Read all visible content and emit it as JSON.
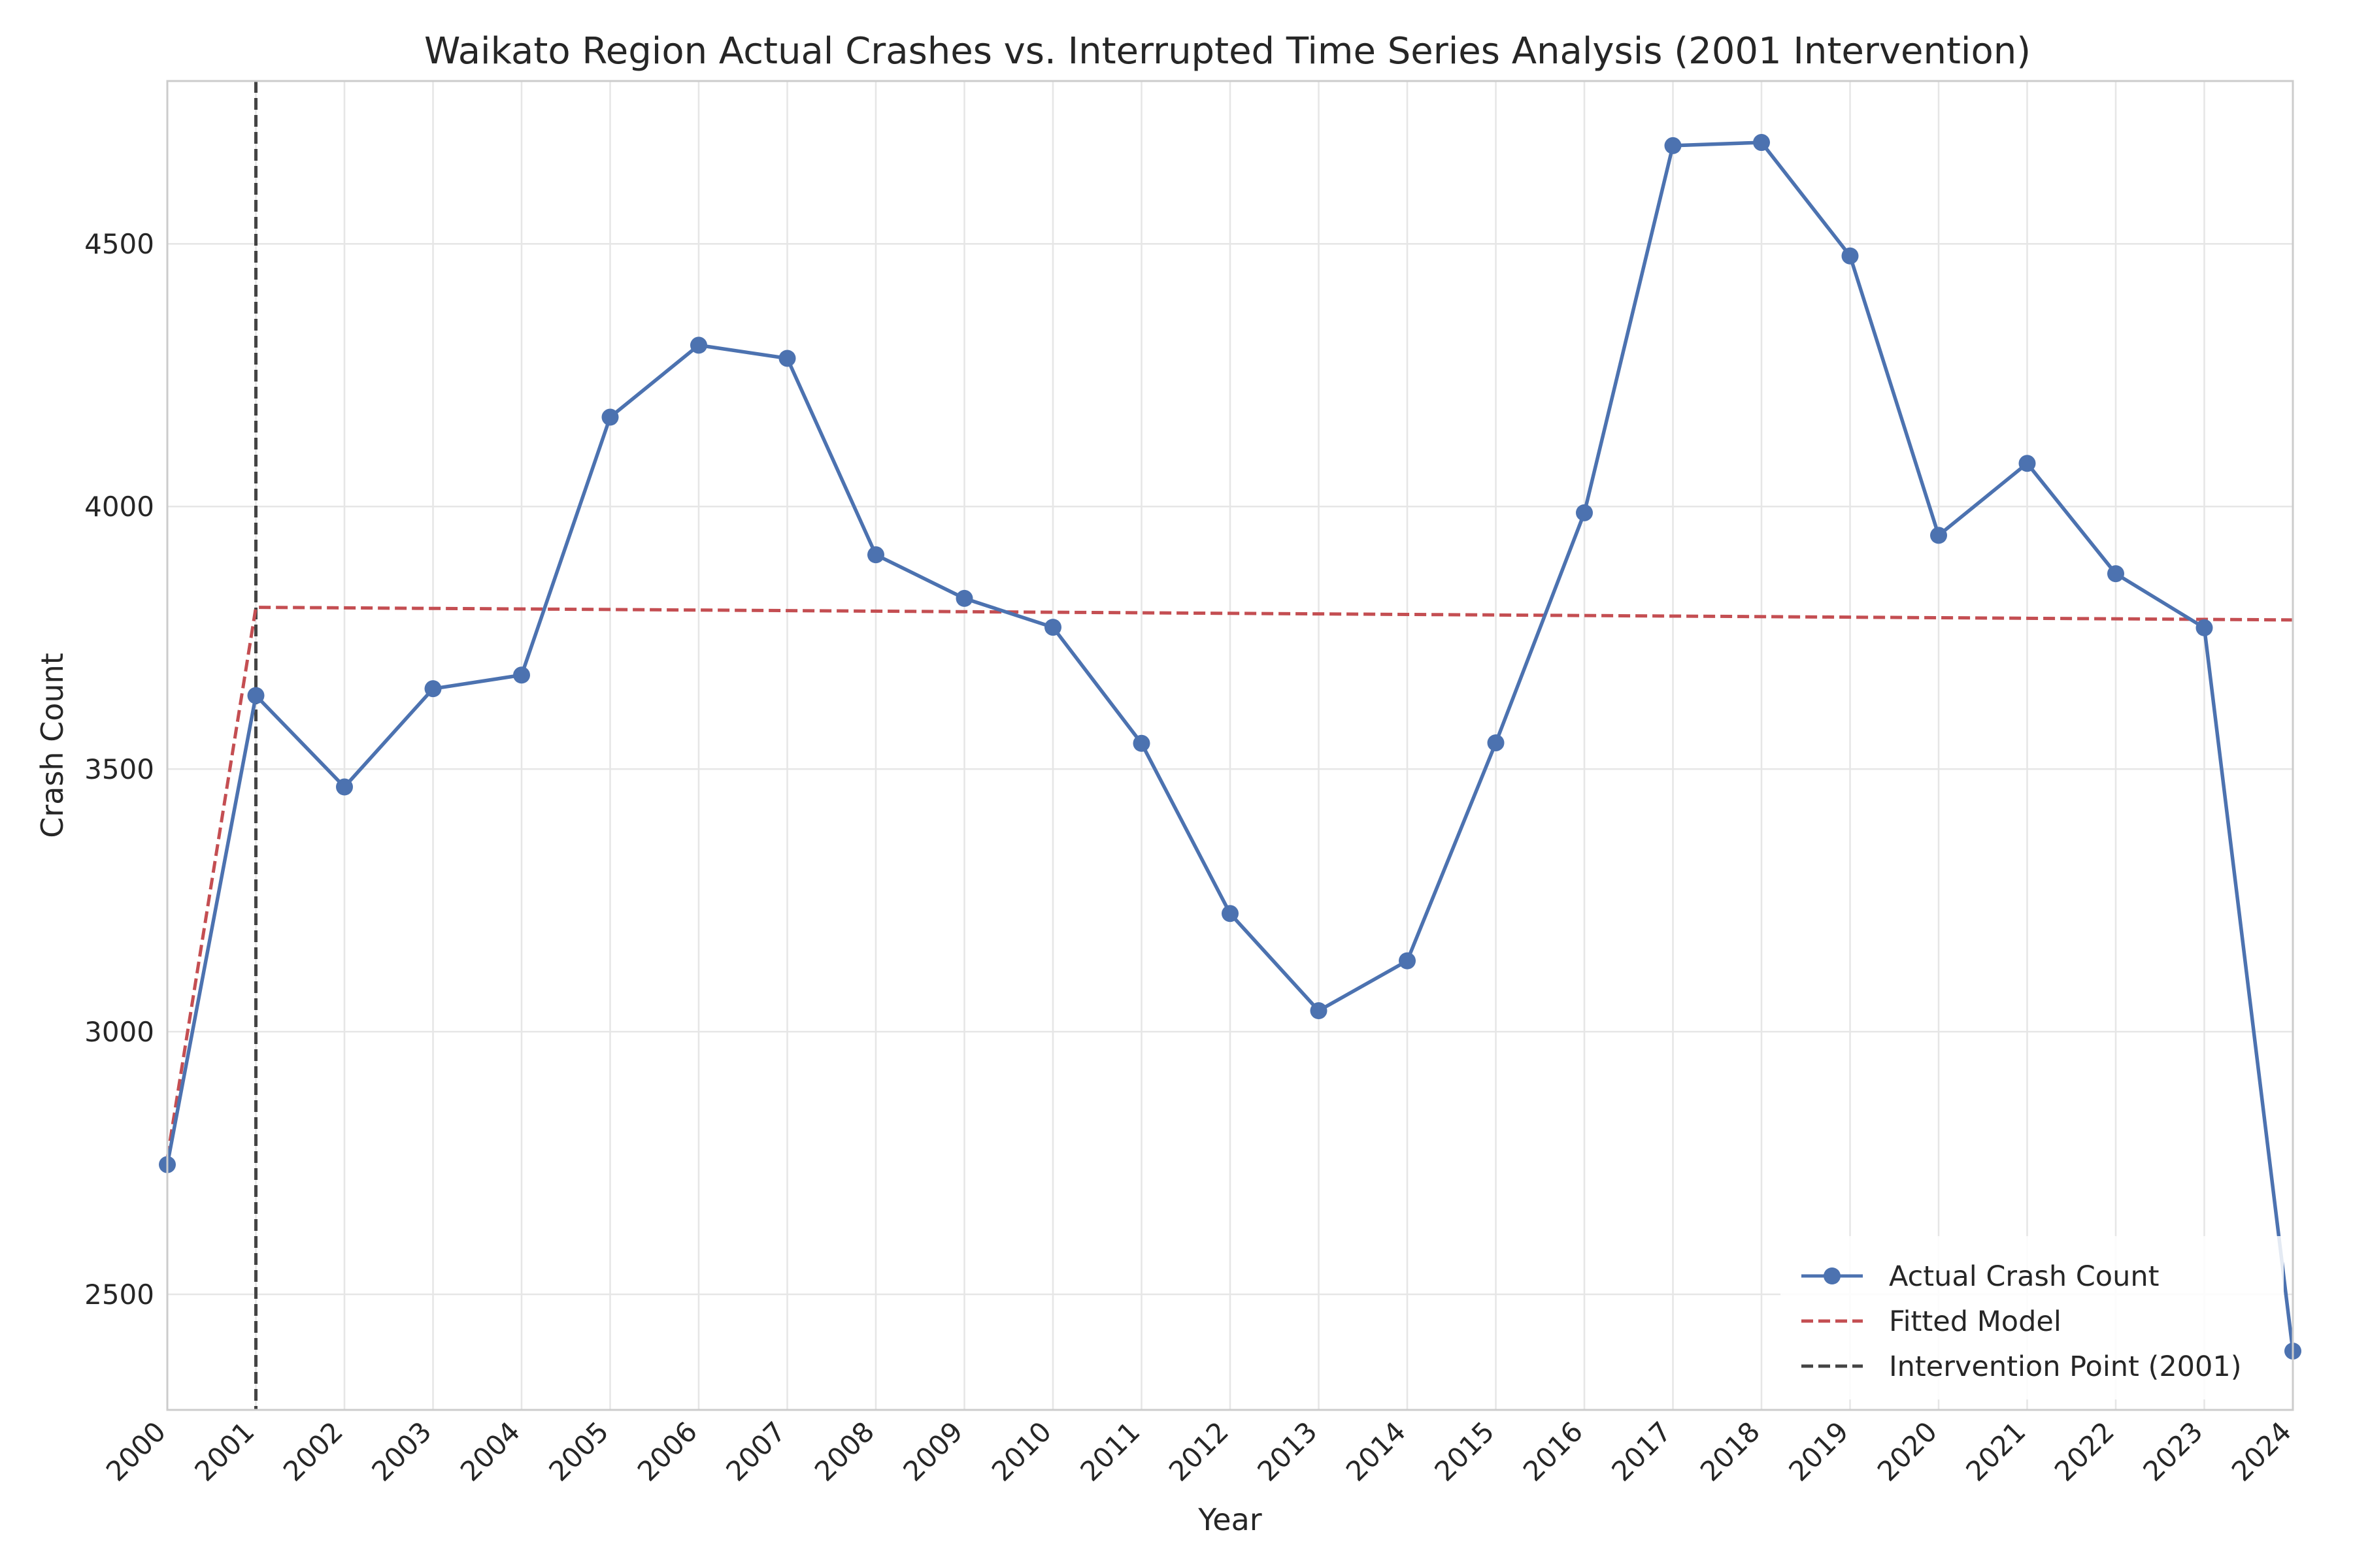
{
  "chart_data": {
    "type": "line",
    "title": "Waikato Region Actual Crashes vs. Interrupted Time Series Analysis (2001 Intervention)",
    "xlabel": "Year",
    "ylabel": "Crash Count",
    "x": [
      2000,
      2001,
      2002,
      2003,
      2004,
      2005,
      2006,
      2007,
      2008,
      2009,
      2010,
      2011,
      2012,
      2013,
      2014,
      2015,
      2016,
      2017,
      2018,
      2019,
      2020,
      2021,
      2022,
      2023,
      2024
    ],
    "xticks": [
      "2000",
      "2001",
      "2002",
      "2003",
      "2004",
      "2005",
      "2006",
      "2007",
      "2008",
      "2009",
      "2010",
      "2011",
      "2012",
      "2013",
      "2014",
      "2015",
      "2016",
      "2017",
      "2018",
      "2019",
      "2020",
      "2021",
      "2022",
      "2023",
      "2024"
    ],
    "xlim": [
      2000,
      2024
    ],
    "ylim": [
      2280,
      4810
    ],
    "yticks": [
      2500,
      3000,
      3500,
      4000,
      4500
    ],
    "ytick_labels": [
      "2500",
      "3000",
      "3500",
      "4000",
      "4500"
    ],
    "grid": true,
    "legend_position": "lower-right",
    "series": [
      {
        "name": "Actual Crash Count",
        "style": "solid-with-markers",
        "color": "#4c72b0",
        "values": [
          2747,
          3640,
          3466,
          3653,
          3679,
          4170,
          4307,
          4282,
          3908,
          3825,
          3770,
          3549,
          3225,
          3040,
          3135,
          3550,
          3988,
          4687,
          4693,
          4477,
          3945,
          4082,
          3872,
          3769,
          2392
        ]
      },
      {
        "name": "Fitted Model",
        "style": "dashed",
        "color": "#c44e52",
        "x": [
          2000,
          2001,
          2024
        ],
        "values": [
          2760,
          3808,
          3784
        ]
      }
    ],
    "reference_lines": [
      {
        "name": "Intervention Point (2001)",
        "x": 2001,
        "style": "dashed",
        "color": "#444444"
      }
    ]
  }
}
